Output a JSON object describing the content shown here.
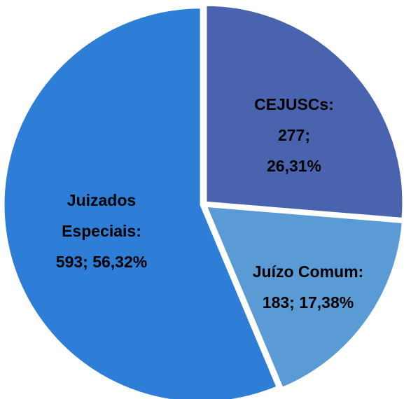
{
  "chart_data": {
    "type": "pie",
    "values": [
      277,
      183,
      593
    ],
    "labels": [
      [
        "CEJUSCs:",
        "277;",
        "26,31%"
      ],
      [
        "Juízo Comum:",
        "183; 17,38%"
      ],
      [
        "Juizados",
        "Especiais:",
        "593; 56,32%"
      ]
    ],
    "colors": [
      "#4a63ae",
      "#5b9bd5",
      "#2e7dd6"
    ]
  }
}
